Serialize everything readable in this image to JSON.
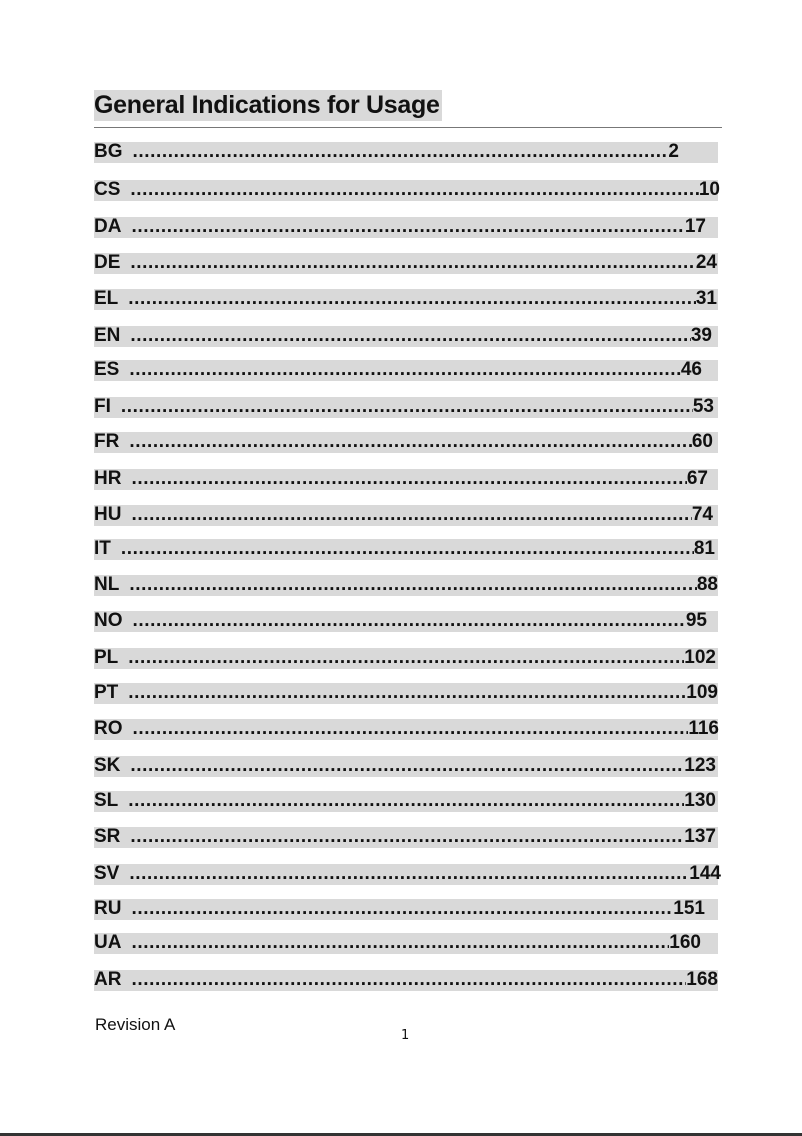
{
  "title": "General Indications for Usage",
  "entries": [
    {
      "code": "BG",
      "page": "2"
    },
    {
      "code": "CS",
      "page": "10"
    },
    {
      "code": "DA",
      "page": "17"
    },
    {
      "code": "DE",
      "page": "24"
    },
    {
      "code": "EL",
      "page": "31"
    },
    {
      "code": "EN",
      "page": "39"
    },
    {
      "code": "ES",
      "page": "46"
    },
    {
      "code": "FI",
      "page": "53"
    },
    {
      "code": "FR",
      "page": "60"
    },
    {
      "code": "HR",
      "page": "67"
    },
    {
      "code": "HU",
      "page": "74"
    },
    {
      "code": "IT",
      "page": "81"
    },
    {
      "code": "NL",
      "page": "88"
    },
    {
      "code": "NO",
      "page": "95"
    },
    {
      "code": "PL",
      "page": "102"
    },
    {
      "code": "PT",
      "page": "109"
    },
    {
      "code": "RO",
      "page": "116"
    },
    {
      "code": "SK",
      "page": "123"
    },
    {
      "code": "SL",
      "page": "130"
    },
    {
      "code": "SR",
      "page": "137"
    },
    {
      "code": "SV",
      "page": "144"
    },
    {
      "code": "RU",
      "page": "151"
    },
    {
      "code": "UA",
      "page": "160"
    },
    {
      "code": "AR",
      "page": "168"
    }
  ],
  "footer": {
    "revision": "Revision A",
    "page_number": "1"
  }
}
